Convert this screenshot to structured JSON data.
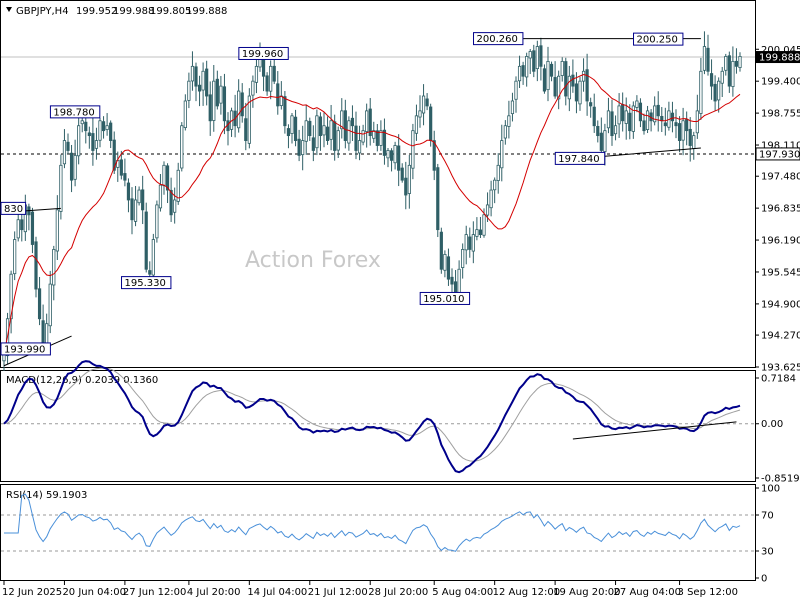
{
  "header": {
    "symbol_label": "GBPJPY,H4",
    "ohlc": [
      "199.952",
      "199.988",
      "199.805",
      "199.888"
    ]
  },
  "watermark": "Action Forex",
  "colors": {
    "candle": "#2f5f66",
    "ma": "#d40000",
    "macd_line": "#00008b",
    "macd_signal": "#a0a0a0",
    "rsi": "#4a90d9",
    "grid_dash": "#9a9a9a",
    "label_border": "#00008b"
  },
  "chart_data": [
    {
      "type": "candlestick",
      "name": "GBPJPY,H4 price panel",
      "current_price": {
        "value": 199.888,
        "label": "199.888"
      },
      "horizontal_level": {
        "value": 197.93,
        "label": "197.930"
      },
      "ylim": [
        193.625,
        201.0
      ],
      "ytick_values": [
        200.045,
        199.4,
        198.755,
        198.11,
        197.48,
        196.835,
        196.19,
        195.545,
        194.9,
        194.27,
        193.625
      ],
      "ytick_labels": [
        "200.045",
        "199.400",
        "198.755",
        "198.110",
        "197.480",
        "196.835",
        "196.190",
        "195.545",
        "194.900",
        "194.270",
        "193.625"
      ],
      "annotations": [
        {
          "text": "830",
          "x": 0.2,
          "y": 196.83
        },
        {
          "text": "193.990",
          "x": 2.5,
          "y": 193.99
        },
        {
          "text": "198.780",
          "x": 20,
          "y": 198.78
        },
        {
          "text": "195.330",
          "x": 40,
          "y": 195.33
        },
        {
          "text": "199.960",
          "x": 73,
          "y": 199.96
        },
        {
          "text": "195.010",
          "x": 124,
          "y": 195.01
        },
        {
          "text": "200.260",
          "x": 139,
          "y": 200.26
        },
        {
          "text": "197.840",
          "x": 162,
          "y": 197.84
        },
        {
          "text": "200.250",
          "x": 184,
          "y": 200.25
        }
      ],
      "trendlines": [
        {
          "x1": 0,
          "y1": 196.75,
          "x2": 16,
          "y2": 196.83
        },
        {
          "x1": 0,
          "y1": 193.65,
          "x2": 19,
          "y2": 194.25
        },
        {
          "x1": 146,
          "y1": 200.26,
          "x2": 196,
          "y2": 200.26
        },
        {
          "x1": 162,
          "y1": 197.84,
          "x2": 196,
          "y2": 198.05
        }
      ],
      "close_series": [
        193.9,
        194.6,
        195.5,
        196.2,
        196.6,
        196.4,
        196.9,
        196.7,
        196.1,
        195.2,
        194.6,
        194.1,
        194.5,
        195.3,
        196.0,
        196.8,
        197.7,
        198.2,
        198.0,
        197.4,
        197.9,
        198.5,
        198.6,
        198.4,
        198.3,
        198.0,
        198.2,
        198.6,
        198.4,
        198.5,
        198.2,
        197.6,
        197.8,
        197.5,
        197.4,
        197.0,
        196.6,
        197.0,
        197.2,
        196.8,
        195.6,
        195.5,
        196.2,
        196.9,
        197.3,
        197.7,
        197.2,
        196.7,
        197.0,
        197.6,
        198.5,
        199.0,
        199.4,
        199.7,
        199.3,
        199.2,
        199.6,
        199.1,
        198.6,
        199.4,
        198.9,
        199.3,
        198.6,
        198.4,
        198.8,
        198.5,
        199.2,
        198.7,
        198.2,
        199.1,
        199.4,
        199.7,
        199.9,
        199.5,
        199.2,
        199.7,
        199.4,
        198.9,
        199.1,
        198.5,
        198.3,
        198.7,
        198.2,
        197.9,
        198.2,
        198.6,
        198.3,
        198.0,
        198.7,
        198.3,
        198.5,
        198.2,
        198.6,
        198.0,
        198.4,
        198.8,
        198.2,
        198.6,
        198.5,
        198.0,
        198.2,
        198.4,
        198.8,
        198.3,
        198.4,
        198.1,
        198.4,
        197.9,
        198.0,
        197.8,
        198.1,
        197.6,
        197.4,
        197.1,
        197.7,
        198.4,
        198.7,
        198.8,
        199.1,
        198.9,
        198.2,
        197.6,
        196.4,
        195.6,
        195.9,
        195.4,
        195.3,
        195.1,
        195.6,
        196.0,
        196.3,
        196.0,
        196.3,
        196.4,
        196.3,
        196.7,
        196.9,
        197.2,
        197.4,
        197.7,
        198.2,
        198.5,
        198.7,
        199.0,
        199.4,
        199.7,
        199.5,
        199.9,
        200.0,
        199.6,
        200.1,
        199.7,
        199.2,
        199.8,
        199.5,
        199.1,
        199.5,
        199.8,
        199.1,
        199.5,
        199.3,
        199.0,
        199.4,
        199.6,
        199.0,
        198.9,
        198.5,
        198.3,
        198.0,
        198.4,
        198.8,
        198.3,
        198.5,
        198.9,
        198.6,
        198.8,
        198.4,
        198.9,
        199.0,
        198.6,
        198.4,
        198.8,
        198.6,
        198.9,
        198.7,
        198.6,
        198.5,
        198.8,
        198.6,
        198.5,
        198.2,
        198.6,
        198.4,
        198.1,
        198.3,
        198.8,
        199.6,
        200.1,
        199.6,
        199.3,
        199.0,
        199.4,
        199.6,
        199.9,
        199.3,
        199.8,
        199.7,
        199.9
      ]
    },
    {
      "type": "line",
      "name": "MACD(12,26,9)",
      "title_label": "MACD(12,26,9) 0.2039 0.1360",
      "ylim": [
        -0.8519,
        0.7184
      ],
      "ytick_values": [
        0.7184,
        0.0,
        -0.8519
      ],
      "ytick_labels": [
        "0.7184",
        "0.00",
        "-0.8519"
      ],
      "trendline": {
        "x1": 160,
        "y1": -0.24,
        "x2": 206,
        "y2": 0.03
      }
    },
    {
      "type": "line",
      "name": "RSI(14)",
      "title_label": "RSI(14) 59.1903",
      "ylim": [
        0,
        100
      ],
      "ytick_values": [
        100,
        70,
        30,
        0
      ],
      "ytick_labels": [
        "100",
        "70",
        "30",
        "0"
      ],
      "levels": [
        70,
        30
      ]
    }
  ],
  "time_axis": {
    "tick_labels": [
      "12 Jun 2025",
      "20 Jun 04:00",
      "27 Jun 12:00",
      "4 Jul 20:00",
      "14 Jul 04:00",
      "21 Jul 12:00",
      "28 Jul 20:00",
      "5 Aug 04:00",
      "12 Aug 12:00",
      "19 Aug 20:00",
      "27 Aug 04:00",
      "3 Sep 12:00"
    ],
    "tick_bar_index": [
      0,
      17,
      34,
      52,
      69,
      86,
      103,
      121,
      138,
      155,
      172,
      190
    ]
  }
}
